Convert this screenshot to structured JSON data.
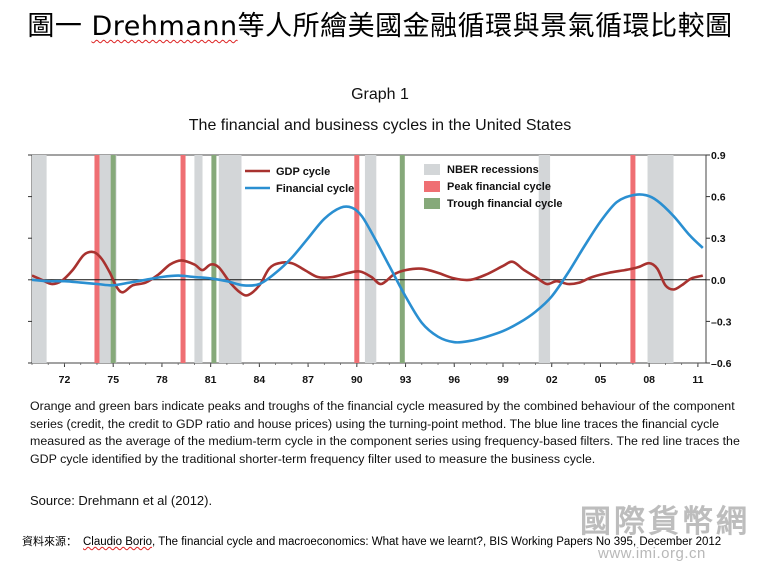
{
  "slide": {
    "title_prefix": "圖一  ",
    "title_name": "Drehmann",
    "title_rest": "等人所繪美國金融循環與景氣循環比較圖"
  },
  "chart_data": {
    "type": "line",
    "graph_label": "Graph 1",
    "title": "The financial and business cycles in the United States",
    "x_ticks": [
      "72",
      "75",
      "78",
      "81",
      "84",
      "87",
      "90",
      "93",
      "96",
      "99",
      "02",
      "05",
      "08",
      "11"
    ],
    "y_ticks": [
      "0.9",
      "0.6",
      "0.3",
      "0.0",
      "–0.3",
      "–0.6"
    ],
    "ylim": [
      -0.6,
      0.9
    ],
    "xlim": [
      1970,
      2011.5
    ],
    "zero_line": true,
    "legend": {
      "series_labels": [
        "GDP cycle",
        "Financial cycle"
      ],
      "band_labels": [
        "NBER recessions",
        "Peak financial cycle",
        "Trough financial cycle"
      ],
      "placement": "top-left"
    },
    "series": [
      {
        "name": "GDP cycle",
        "color": "#a8322f",
        "points": [
          [
            1970,
            0.03
          ],
          [
            1970.6,
            0.0
          ],
          [
            1971.2,
            -0.03
          ],
          [
            1971.8,
            -0.01
          ],
          [
            1972.5,
            0.07
          ],
          [
            1973.2,
            0.18
          ],
          [
            1973.8,
            0.2
          ],
          [
            1974.3,
            0.15
          ],
          [
            1974.8,
            0.05
          ],
          [
            1975.2,
            -0.05
          ],
          [
            1975.6,
            -0.09
          ],
          [
            1976.2,
            -0.04
          ],
          [
            1977,
            -0.02
          ],
          [
            1977.8,
            0.04
          ],
          [
            1978.5,
            0.11
          ],
          [
            1979.2,
            0.14
          ],
          [
            1980,
            0.11
          ],
          [
            1980.5,
            0.07
          ],
          [
            1981,
            0.11
          ],
          [
            1981.5,
            0.09
          ],
          [
            1982.2,
            -0.02
          ],
          [
            1982.8,
            -0.09
          ],
          [
            1983.3,
            -0.11
          ],
          [
            1984,
            -0.04
          ],
          [
            1984.6,
            0.08
          ],
          [
            1985.2,
            0.12
          ],
          [
            1986,
            0.12
          ],
          [
            1986.8,
            0.07
          ],
          [
            1987.6,
            0.02
          ],
          [
            1988.5,
            0.02
          ],
          [
            1989.5,
            0.05
          ],
          [
            1990.2,
            0.06
          ],
          [
            1990.9,
            0.02
          ],
          [
            1991.5,
            -0.03
          ],
          [
            1992.3,
            0.04
          ],
          [
            1993,
            0.07
          ],
          [
            1994,
            0.08
          ],
          [
            1995,
            0.05
          ],
          [
            1996,
            0.01
          ],
          [
            1997,
            0.0
          ],
          [
            1998,
            0.04
          ],
          [
            1999,
            0.1
          ],
          [
            1999.6,
            0.13
          ],
          [
            2000.3,
            0.07
          ],
          [
            2001,
            0.02
          ],
          [
            2001.7,
            -0.03
          ],
          [
            2002.3,
            -0.01
          ],
          [
            2003,
            -0.03
          ],
          [
            2003.7,
            -0.02
          ],
          [
            2004.5,
            0.02
          ],
          [
            2005.5,
            0.05
          ],
          [
            2006.5,
            0.07
          ],
          [
            2007.3,
            0.09
          ],
          [
            2008,
            0.12
          ],
          [
            2008.5,
            0.08
          ],
          [
            2009,
            -0.04
          ],
          [
            2009.5,
            -0.07
          ],
          [
            2010,
            -0.04
          ],
          [
            2010.6,
            0.01
          ],
          [
            2011.3,
            0.03
          ]
        ]
      },
      {
        "name": "Financial cycle",
        "color": "#2a8fd1",
        "points": [
          [
            1970,
            0.0
          ],
          [
            1971,
            -0.01
          ],
          [
            1972,
            -0.01
          ],
          [
            1973,
            -0.02
          ],
          [
            1974,
            -0.03
          ],
          [
            1975,
            -0.04
          ],
          [
            1976,
            -0.02
          ],
          [
            1977,
            0.0
          ],
          [
            1978,
            0.02
          ],
          [
            1979,
            0.03
          ],
          [
            1980,
            0.02
          ],
          [
            1981,
            0.01
          ],
          [
            1982,
            -0.01
          ],
          [
            1983,
            -0.04
          ],
          [
            1984,
            -0.03
          ],
          [
            1985,
            0.05
          ],
          [
            1986,
            0.16
          ],
          [
            1987,
            0.3
          ],
          [
            1988,
            0.44
          ],
          [
            1989,
            0.52
          ],
          [
            1989.7,
            0.52
          ],
          [
            1990.3,
            0.46
          ],
          [
            1991,
            0.32
          ],
          [
            1992,
            0.1
          ],
          [
            1993,
            -0.12
          ],
          [
            1994,
            -0.31
          ],
          [
            1995,
            -0.41
          ],
          [
            1996,
            -0.45
          ],
          [
            1997,
            -0.44
          ],
          [
            1998,
            -0.41
          ],
          [
            1999,
            -0.37
          ],
          [
            2000,
            -0.31
          ],
          [
            2001,
            -0.23
          ],
          [
            2002,
            -0.12
          ],
          [
            2003,
            0.05
          ],
          [
            2004,
            0.24
          ],
          [
            2005,
            0.42
          ],
          [
            2006,
            0.56
          ],
          [
            2007,
            0.61
          ],
          [
            2007.8,
            0.61
          ],
          [
            2008.5,
            0.57
          ],
          [
            2009.5,
            0.46
          ],
          [
            2010.5,
            0.32
          ],
          [
            2011.3,
            0.23
          ]
        ]
      }
    ],
    "nber_recessions": [
      [
        1970,
        1970.9
      ],
      [
        1973.9,
        1975.2
      ],
      [
        1980,
        1980.5
      ],
      [
        1981.5,
        1982.9
      ],
      [
        1990.5,
        1991.2
      ],
      [
        2001.2,
        2001.9
      ],
      [
        2007.9,
        2009.5
      ]
    ],
    "peak_financial_cycle": [
      1974,
      1979.3,
      1990,
      2007
    ],
    "trough_financial_cycle": [
      1975,
      1981.2,
      1992.8
    ],
    "note": "Orange and green bars indicate peaks and troughs of the financial cycle measured by the combined behaviour of the component series (credit, the credit to GDP ratio and house prices) using the turning-point method. The blue line traces the financial cycle measured as the average of the medium-term cycle in the component series using frequency-based filters. The red line traces the GDP cycle identified by the traditional shorter-term frequency filter used to measure the business cycle.",
    "source": "Source: Drehmann et al (2012)."
  },
  "reference": {
    "label": "資料來源：",
    "author": "Claudio Borio",
    "rest": ", The financial cycle and macroeconomics: What have we learnt?,  BIS Working Papers No 395, December 2012"
  },
  "watermark": {
    "brand": "國際貨幣網",
    "url": "www.imi.org.cn"
  }
}
